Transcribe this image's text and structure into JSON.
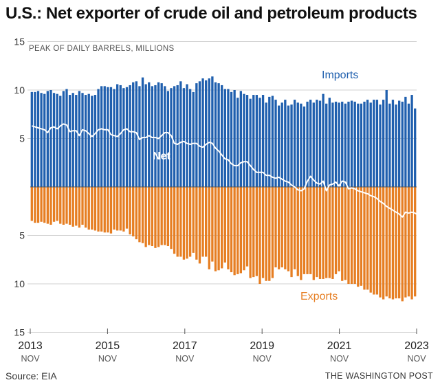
{
  "title": "U.S.: Net exporter of crude oil and petroleum products",
  "source": "Source: EIA",
  "credit": "THE WASHINGTON POST",
  "colors": {
    "imports": "#1f5fae",
    "exports": "#e67e22",
    "net": "#ffffff",
    "grid": "#d0d0d0",
    "zero": "#555555"
  },
  "chart_data": {
    "type": "bar",
    "subtitle": "PEAK OF DAILY BARRELS, MILLIONS",
    "yticks": [
      {
        "value": 15,
        "label": "15"
      },
      {
        "value": 10,
        "label": "10"
      },
      {
        "value": 5,
        "label": "5"
      },
      {
        "value": -5,
        "label": "5"
      },
      {
        "value": -10,
        "label": "10"
      },
      {
        "value": -15,
        "label": "15"
      }
    ],
    "ylim": [
      -15,
      15
    ],
    "xlim": [
      0,
      120
    ],
    "xticks": [
      {
        "month": 0,
        "year": "2013",
        "month_label": "NOV"
      },
      {
        "month": 24,
        "year": "2015",
        "month_label": "NOV"
      },
      {
        "month": 48,
        "year": "2017",
        "month_label": "NOV"
      },
      {
        "month": 72,
        "year": "2019",
        "month_label": "NOV"
      },
      {
        "month": 96,
        "year": "2021",
        "month_label": "NOV"
      },
      {
        "month": 120,
        "year": "2023",
        "month_label": "NOV"
      }
    ],
    "series_labels": {
      "imports": "Imports",
      "exports": "Exports",
      "net": "Net"
    },
    "series": [
      {
        "name": "Imports",
        "values": [
          9.8,
          9.8,
          9.9,
          9.7,
          9.6,
          9.9,
          10.0,
          9.7,
          9.6,
          9.4,
          9.9,
          10.1,
          9.5,
          9.7,
          9.5,
          9.9,
          9.7,
          9.5,
          9.6,
          9.4,
          9.5,
          10.1,
          10.4,
          10.4,
          10.3,
          10.3,
          10.1,
          10.6,
          10.5,
          10.2,
          10.3,
          10.5,
          10.8,
          10.9,
          10.4,
          11.3,
          10.6,
          10.8,
          10.4,
          10.5,
          10.8,
          10.7,
          10.4,
          9.9,
          10.2,
          10.4,
          10.5,
          10.9,
          10.2,
          10.6,
          10.1,
          9.8,
          10.7,
          10.9,
          11.2,
          11.0,
          11.2,
          11.4,
          10.8,
          10.7,
          10.5,
          10.1,
          10.1,
          9.8,
          10.0,
          9.2,
          9.9,
          9.6,
          9.5,
          9.1,
          9.5,
          9.5,
          9.2,
          9.5,
          8.7,
          9.3,
          9.4,
          9.0,
          8.4,
          8.7,
          9.0,
          8.4,
          8.5,
          9.0,
          8.7,
          8.6,
          8.3,
          8.8,
          9.0,
          8.7,
          9.0,
          8.9,
          9.6,
          8.6,
          9.2,
          8.7,
          8.8,
          8.7,
          8.8,
          8.6,
          8.8,
          8.9,
          8.8,
          8.6,
          8.6,
          8.8,
          9.0,
          8.7,
          9.0,
          9.0,
          8.5,
          9.0,
          10.0,
          8.6,
          9.0,
          8.5,
          8.9,
          8.8,
          9.3,
          8.6,
          9.5,
          8.1
        ]
      },
      {
        "name": "Exports",
        "values": [
          3.5,
          3.7,
          3.7,
          3.6,
          3.7,
          3.8,
          3.9,
          3.6,
          3.5,
          3.8,
          3.9,
          3.8,
          3.9,
          4.1,
          4.0,
          4.2,
          3.9,
          4.2,
          4.4,
          4.4,
          4.5,
          4.6,
          4.6,
          4.7,
          4.7,
          4.8,
          4.4,
          4.5,
          4.5,
          4.6,
          4.3,
          4.9,
          5.1,
          5.4,
          5.7,
          5.8,
          6.2,
          6.0,
          6.1,
          6.3,
          6.2,
          6.0,
          6.0,
          6.1,
          6.4,
          6.9,
          7.2,
          7.2,
          7.5,
          7.4,
          7.2,
          6.8,
          7.5,
          7.9,
          7.2,
          7.2,
          8.5,
          7.7,
          8.7,
          8.6,
          8.4,
          7.8,
          8.5,
          8.8,
          9.1,
          9.0,
          8.9,
          8.6,
          8.2,
          9.4,
          9.3,
          9.2,
          10.0,
          9.4,
          9.7,
          9.7,
          9.4,
          8.3,
          8.5,
          8.3,
          8.5,
          8.7,
          9.3,
          8.5,
          9.2,
          9.6,
          9.0,
          9.0,
          9.0,
          9.6,
          9.3,
          9.5,
          9.5,
          9.4,
          9.4,
          9.5,
          9.0,
          8.7,
          9.7,
          9.6,
          10.0,
          10.0,
          10.0,
          10.3,
          10.2,
          10.6,
          10.6,
          10.9,
          11.1,
          11.1,
          11.4,
          11.6,
          11.3,
          11.5,
          11.6,
          11.5,
          11.5,
          11.8,
          11.4,
          11.3,
          11.6,
          11.3,
          11.1
        ]
      },
      {
        "name": "Net",
        "values": [
          6.3,
          6.2,
          6.1,
          6.0,
          5.9,
          5.6,
          6.1,
          6.2,
          6.0,
          6.3,
          6.5,
          6.4,
          5.7,
          5.8,
          5.8,
          5.3,
          5.9,
          5.8,
          5.5,
          5.2,
          5.5,
          5.9,
          6.0,
          5.9,
          5.9,
          5.4,
          5.3,
          5.2,
          5.5,
          5.9,
          6.0,
          5.7,
          5.7,
          5.6,
          4.9,
          5.1,
          5.1,
          5.3,
          5.1,
          5.1,
          5.0,
          5.3,
          5.6,
          5.6,
          5.3,
          4.5,
          4.4,
          4.6,
          4.7,
          4.5,
          4.4,
          4.5,
          4.5,
          4.2,
          4.1,
          4.4,
          4.6,
          4.5,
          4.0,
          3.7,
          3.3,
          2.9,
          2.8,
          2.4,
          2.2,
          2.2,
          2.5,
          2.6,
          2.6,
          2.2,
          1.8,
          1.5,
          1.5,
          1.5,
          1.2,
          1.2,
          1.0,
          0.9,
          1.0,
          0.8,
          0.6,
          0.5,
          0.2,
          0.0,
          -0.3,
          -0.4,
          -0.2,
          0.6,
          1.1,
          0.7,
          0.4,
          0.3,
          0.6,
          -0.4,
          0.2,
          0.3,
          0.5,
          0.1,
          0.6,
          0.5,
          -0.2,
          -0.1,
          -0.2,
          -0.4,
          -0.5,
          -0.6,
          -0.7,
          -0.9,
          -1.0,
          -1.2,
          -1.5,
          -1.7,
          -2.0,
          -2.2,
          -2.4,
          -2.6,
          -2.8,
          -3.1,
          -2.6,
          -2.7,
          -2.6,
          -2.7,
          -2.9
        ]
      }
    ]
  }
}
